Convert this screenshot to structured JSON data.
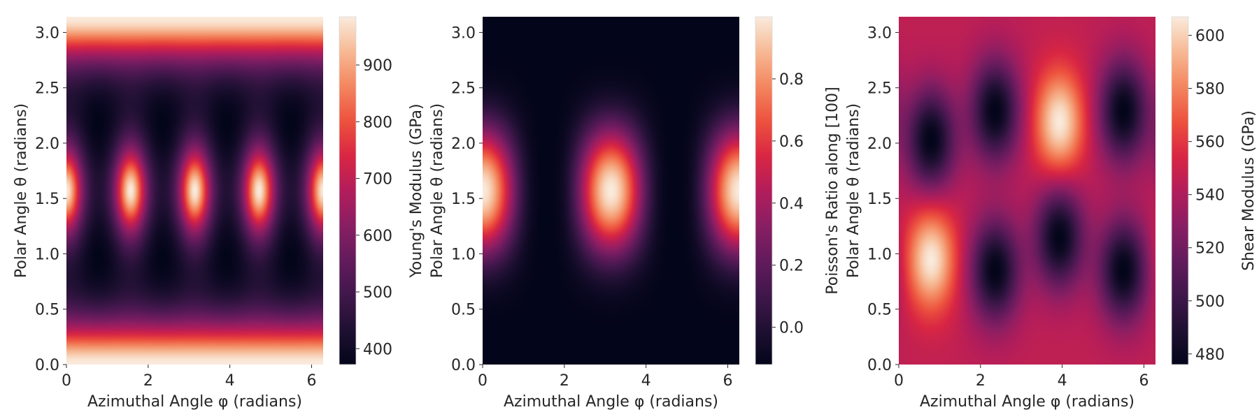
{
  "chart_data": [
    {
      "type": "heatmap",
      "title": "",
      "xlabel": "Azimuthal Angle φ (radians)",
      "ylabel": "Polar Angle θ (radians)",
      "xlim": [
        0,
        6.2832
      ],
      "ylim": [
        0,
        3.1416
      ],
      "xticks": [
        0,
        2,
        4,
        6
      ],
      "xtick_labels": [
        "0",
        "2",
        "4",
        "6"
      ],
      "yticks": [
        0,
        0.5,
        1.0,
        1.5,
        2.0,
        2.5,
        3.0
      ],
      "ytick_labels": [
        "0.0",
        "0.5",
        "1.0",
        "1.5",
        "2.0",
        "2.5",
        "3.0"
      ],
      "colormap": "rocket",
      "colorbar": {
        "label": "Young's Modulus (GPa)",
        "range": [
          372,
          985
        ],
        "ticks": [
          400,
          500,
          600,
          700,
          800,
          900
        ],
        "tick_labels": [
          "400",
          "500",
          "600",
          "700",
          "800",
          "900"
        ]
      },
      "field": {
        "description": "Young's modulus E(θ, φ)",
        "min": 372,
        "max": 985,
        "polar_max_value": 985,
        "equator_peaks": {
          "phi": [
            0,
            1.5708,
            3.1416,
            4.7124,
            6.2832
          ],
          "theta": 1.5708,
          "value": 985
        },
        "minima": {
          "phi": [
            0.7854,
            2.3562,
            3.927,
            5.4978
          ],
          "theta": [
            0.9553,
            2.1863
          ],
          "value": 372
        }
      }
    },
    {
      "type": "heatmap",
      "title": "",
      "xlabel": "Azimuthal Angle φ (radians)",
      "ylabel": "Polar Angle θ (radians)",
      "xlim": [
        0,
        6.2832
      ],
      "ylim": [
        0,
        3.1416
      ],
      "xticks": [
        0,
        2,
        4,
        6
      ],
      "xtick_labels": [
        "0",
        "2",
        "4",
        "6"
      ],
      "yticks": [
        0,
        0.5,
        1.0,
        1.5,
        2.0,
        2.5,
        3.0
      ],
      "ytick_labels": [
        "0.0",
        "0.5",
        "1.0",
        "1.5",
        "2.0",
        "2.5",
        "3.0"
      ],
      "colormap": "rocket",
      "colorbar": {
        "label": "Poisson's Ratio along [100]",
        "range": [
          -0.12,
          1.0
        ],
        "ticks": [
          0.0,
          0.2,
          0.4,
          0.6,
          0.8
        ],
        "tick_labels": [
          "0.0",
          "0.2",
          "0.4",
          "0.6",
          "0.8"
        ]
      },
      "field": {
        "description": "Poisson's ratio ν(θ, φ) along [100]",
        "min": -0.12,
        "max": 1.0,
        "peaks": {
          "phi": [
            0,
            3.1416,
            6.2832
          ],
          "theta": 1.5708,
          "value": 1.0
        },
        "valleys": {
          "phi": [
            1.5708,
            4.7124
          ],
          "value": -0.12
        }
      }
    },
    {
      "type": "heatmap",
      "title": "",
      "xlabel": "Azimuthal Angle φ (radians)",
      "ylabel": "Polar Angle θ (radians)",
      "xlim": [
        0,
        6.2832
      ],
      "ylim": [
        0,
        3.1416
      ],
      "xticks": [
        0,
        2,
        4,
        6
      ],
      "xtick_labels": [
        "0",
        "2",
        "4",
        "6"
      ],
      "yticks": [
        0,
        0.5,
        1.0,
        1.5,
        2.0,
        2.5,
        3.0
      ],
      "ytick_labels": [
        "0.0",
        "0.5",
        "1.0",
        "1.5",
        "2.0",
        "2.5",
        "3.0"
      ],
      "colormap": "rocket",
      "colorbar": {
        "label": "Shear Modulus (GPa)",
        "range": [
          476,
          607
        ],
        "ticks": [
          480,
          500,
          520,
          540,
          560,
          580,
          600
        ],
        "tick_labels": [
          "480",
          "500",
          "520",
          "540",
          "560",
          "580",
          "600"
        ]
      },
      "field": {
        "description": "Shear modulus G(θ, φ)",
        "base_value": 546,
        "min": 476,
        "max": 607,
        "maxima": [
          {
            "phi": 0.79,
            "theta": 0.95,
            "value": 607
          },
          {
            "phi": 3.93,
            "theta": 2.19,
            "value": 607
          }
        ],
        "minima": [
          {
            "phi": 0.79,
            "theta": 2.03,
            "value": 476
          },
          {
            "phi": 2.36,
            "theta": 2.29,
            "value": 476
          },
          {
            "phi": 5.5,
            "theta": 2.29,
            "value": 476
          },
          {
            "phi": 2.36,
            "theta": 0.85,
            "value": 476
          },
          {
            "phi": 3.93,
            "theta": 1.15,
            "value": 476
          },
          {
            "phi": 5.5,
            "theta": 0.85,
            "value": 476
          }
        ]
      }
    }
  ]
}
